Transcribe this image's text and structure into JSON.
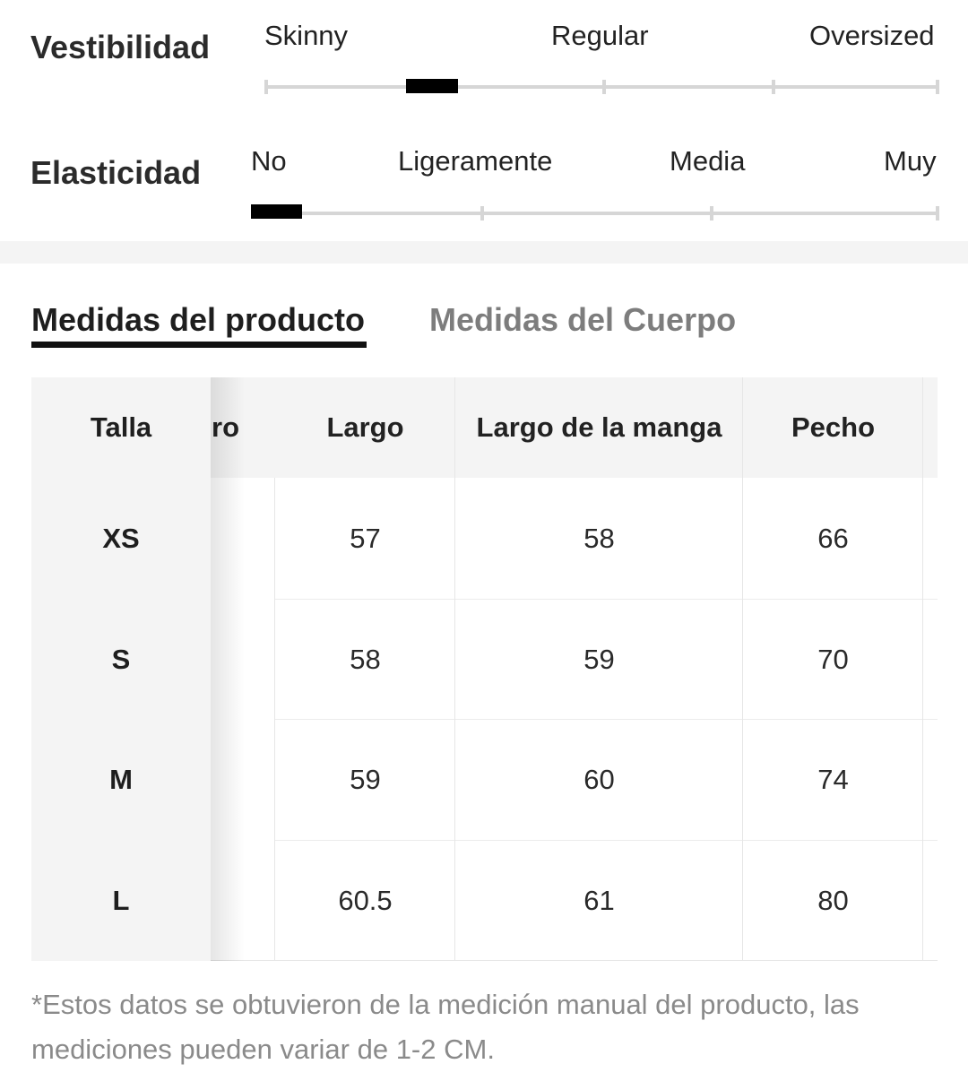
{
  "fit": {
    "vestibilidad": {
      "label": "Vestibilidad",
      "options": [
        "Skinny",
        "Regular",
        "Oversized"
      ],
      "selected_position": 0.21
    },
    "elasticidad": {
      "label": "Elasticidad",
      "options": [
        "No",
        "Ligeramente",
        "Media",
        "Muy"
      ],
      "selected_position": 0.0
    }
  },
  "tabs": {
    "product": "Medidas del producto",
    "body": "Medidas del Cuerpo",
    "active": "product"
  },
  "table": {
    "partial_header": "ro",
    "headers": {
      "size": "Talla",
      "largo": "Largo",
      "manga": "Largo de la manga",
      "pecho": "Pecho"
    },
    "rows": [
      {
        "size": "XS",
        "largo": "57",
        "manga": "58",
        "pecho": "66"
      },
      {
        "size": "S",
        "largo": "58",
        "manga": "59",
        "pecho": "70"
      },
      {
        "size": "M",
        "largo": "59",
        "manga": "60",
        "pecho": "74"
      },
      {
        "size": "L",
        "largo": "60.5",
        "manga": "61",
        "pecho": "80"
      }
    ]
  },
  "note": "*Estos datos se obtuvieron de la medición manual del producto, las mediciones pueden variar de 1-2 CM."
}
